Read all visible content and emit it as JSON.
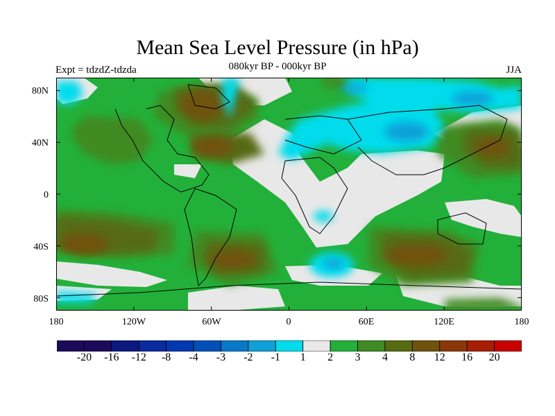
{
  "title": "Mean Sea Level Pressure (in hPa)",
  "subtitle": "080kyr BP - 000kyr BP",
  "experiment": "Expt = tdzdZ-tdzda",
  "season": "JJA",
  "lat_labels": [
    "80N",
    "40N",
    "0",
    "40S",
    "80S"
  ],
  "lat_values": [
    80,
    40,
    0,
    -40,
    -80
  ],
  "lon_labels": [
    "180",
    "120W",
    "60W",
    "0",
    "60E",
    "120E",
    "180"
  ],
  "lon_values": [
    -180,
    -120,
    -60,
    0,
    60,
    120,
    180
  ],
  "lat_range": [
    -90,
    90
  ],
  "lon_range": [
    -180,
    180
  ],
  "colorbar": {
    "labels": [
      "-20",
      "-16",
      "-12",
      "-8",
      "-4",
      "-3",
      "-2",
      "-1",
      "1",
      "2",
      "3",
      "4",
      "8",
      "12",
      "16",
      "20"
    ],
    "colors": [
      "#1c0a5a",
      "#0a1a80",
      "#0a2aa0",
      "#0038b0",
      "#0050b8",
      "#0878c8",
      "#10a0d8",
      "#00dcec",
      "#e8e8e8",
      "#22b03a",
      "#3f8a22",
      "#566b12",
      "#6f520c",
      "#8a3808",
      "#a81e04",
      "#c80000"
    ]
  }
}
